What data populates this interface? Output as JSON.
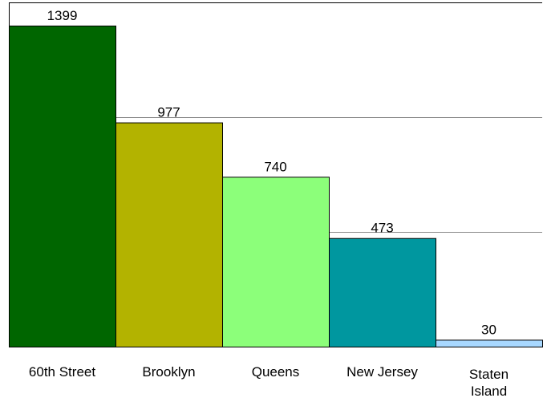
{
  "chart_data": {
    "type": "bar",
    "categories": [
      "60th Street",
      "Brooklyn",
      "Queens",
      "New Jersey",
      "Staten Island"
    ],
    "values": [
      1399,
      977,
      740,
      473,
      30
    ],
    "colors": [
      "#006600",
      "#b3b300",
      "#8cff7a",
      "#00979f",
      "#a8d8ff"
    ],
    "ylim": [
      0,
      1500
    ],
    "grid": true,
    "gridlines_at": [
      500,
      1000
    ],
    "title": "",
    "xlabel": "",
    "ylabel": ""
  }
}
